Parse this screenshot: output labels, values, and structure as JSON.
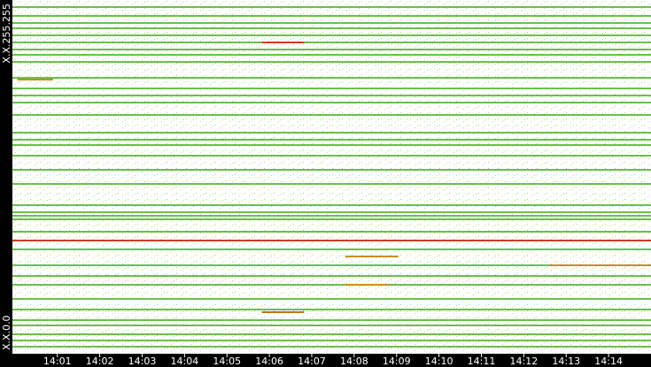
{
  "chart_data": {
    "type": "raster",
    "xlim": [
      -0.06,
      15
    ],
    "ylim": [
      0,
      65535
    ],
    "xticks": [
      {
        "value": 1,
        "label": "14:01"
      },
      {
        "value": 2,
        "label": "14:02"
      },
      {
        "value": 3,
        "label": "14:03"
      },
      {
        "value": 4,
        "label": "14:04"
      },
      {
        "value": 5,
        "label": "14:05"
      },
      {
        "value": 6,
        "label": "14:06"
      },
      {
        "value": 7,
        "label": "14:07"
      },
      {
        "value": 8,
        "label": "14:08"
      },
      {
        "value": 9,
        "label": "14:09"
      },
      {
        "value": 10,
        "label": "14:10"
      },
      {
        "value": 11,
        "label": "14:11"
      },
      {
        "value": 12,
        "label": "14:12"
      },
      {
        "value": 13,
        "label": "14:13"
      },
      {
        "value": 14,
        "label": "14:14"
      }
    ],
    "yticks": [
      {
        "value": 0,
        "label": "X.X.0.0"
      },
      {
        "value": 65535,
        "label": "X.X.255.255"
      }
    ],
    "rows": [
      {
        "color": "#6cbf4b",
        "addresses": [
          64225,
          62587,
          61276,
          60293,
          58982,
          57672,
          56361,
          55378,
          54067,
          51118,
          49152,
          47841,
          46531,
          44237,
          40960,
          39649,
          38666,
          36700,
          34079,
          31457,
          27525,
          26214,
          25559,
          24904,
          22610,
          19333,
          16384,
          14418,
          12780,
          10158,
          8192,
          6226,
          5243,
          3604,
          2458,
          1311
        ]
      },
      {
        "color": "#c8401a",
        "addresses": [
          20972
        ]
      }
    ],
    "segments": [
      {
        "address": 57672,
        "x": [
          5.82,
          6.82
        ],
        "color": "#c8401a"
      },
      {
        "address": 7700,
        "x": [
          5.82,
          6.82
        ],
        "color": "#c8701a"
      },
      {
        "address": 50790,
        "x": [
          0.06,
          0.9
        ],
        "color": "#d08a20"
      },
      {
        "address": 18022,
        "x": [
          7.79,
          9.04
        ],
        "color": "#d08a20"
      },
      {
        "address": 12780,
        "x": [
          7.79,
          8.83
        ],
        "color": "#d08a20"
      },
      {
        "address": 16384,
        "x": [
          12.59,
          15
        ],
        "color": "#d08a20"
      }
    ]
  }
}
